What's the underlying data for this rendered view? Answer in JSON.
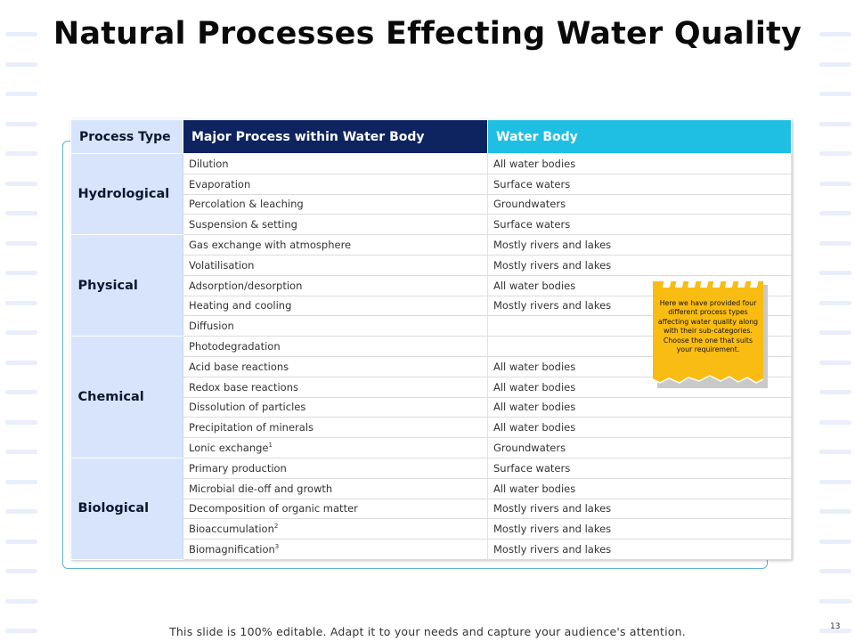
{
  "title": "Natural Processes Effecting Water Quality",
  "table": {
    "headers": [
      "Process Type",
      "Major Process within Water Body",
      "Water Body"
    ],
    "groups": [
      {
        "type": "Hydrological",
        "rows": [
          {
            "process": "Dilution",
            "water_body": "All water bodies"
          },
          {
            "process": "Evaporation",
            "water_body": "Surface waters"
          },
          {
            "process": "Percolation & leaching",
            "water_body": "Groundwaters"
          },
          {
            "process": "Suspension & setting",
            "water_body": "Surface waters"
          }
        ]
      },
      {
        "type": "Physical",
        "rows": [
          {
            "process": "Gas exchange with atmosphere",
            "water_body": "Mostly rivers and lakes"
          },
          {
            "process": "Volatilisation",
            "water_body": "Mostly rivers and lakes"
          },
          {
            "process": "Adsorption/desorption",
            "water_body": "All water bodies"
          },
          {
            "process": "Heating and cooling",
            "water_body": "Mostly rivers and lakes"
          },
          {
            "process": "Diffusion",
            "water_body": ""
          }
        ]
      },
      {
        "type": "Chemical",
        "rows": [
          {
            "process": "Photodegradation",
            "water_body": ""
          },
          {
            "process": "Acid base reactions",
            "water_body": "All water bodies"
          },
          {
            "process": "Redox base reactions",
            "water_body": "All water bodies"
          },
          {
            "process": "Dissolution of particles",
            "water_body": "All water bodies"
          },
          {
            "process": "Precipitation of minerals",
            "water_body": "All water bodies"
          },
          {
            "process": "Lonic exchange",
            "sup": "1",
            "water_body": "Groundwaters"
          }
        ]
      },
      {
        "type": "Biological",
        "rows": [
          {
            "process": "Primary production",
            "water_body": "Surface waters"
          },
          {
            "process": "Microbial die-off and growth",
            "water_body": "All water bodies"
          },
          {
            "process": "Decomposition of organic matter",
            "water_body": "Mostly rivers and lakes"
          },
          {
            "process": "Bioaccumulation",
            "sup": "2",
            "water_body": "Mostly rivers and lakes"
          },
          {
            "process": "Biomagnification",
            "sup": "3",
            "water_body": "Mostly rivers and lakes"
          }
        ]
      }
    ]
  },
  "sticky_note": {
    "lines": [
      "Here we have provided four",
      "different process types",
      "affecting water quality along",
      "with their sub-categories.",
      "Choose the one that suits",
      "your requirement."
    ]
  },
  "footer": "This slide is 100% editable. Adapt it to your needs and capture your audience's attention.",
  "page_number": "13",
  "colors": {
    "header_dark": "#0d2460",
    "header_cyan": "#1fbfe3",
    "type_light": "#d7e4fb",
    "sticky": "#f9bc12",
    "frame": "#5fb2d2"
  }
}
